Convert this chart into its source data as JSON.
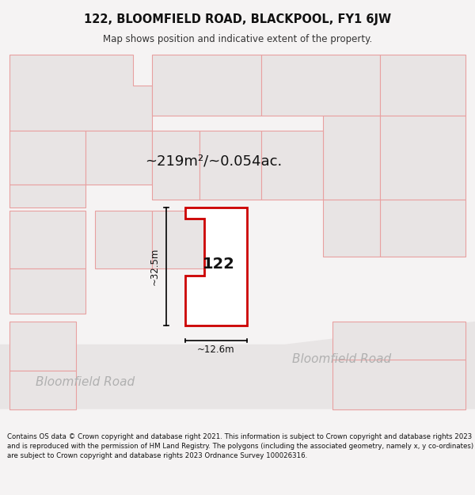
{
  "title_line1": "122, BLOOMFIELD ROAD, BLACKPOOL, FY1 6JW",
  "title_line2": "Map shows position and indicative extent of the property.",
  "area_label": "~219m²/~0.054ac.",
  "property_label": "122",
  "dim_width_label": "~12.6m",
  "dim_height_label": "~32.5m",
  "road_label_bottom_left": "Bloomfield Road",
  "road_label_bottom_right": "Bloomfield Road",
  "footer_text": "Contains OS data © Crown copyright and database right 2021. This information is subject to Crown copyright and database rights 2023 and is reproduced with the permission of HM Land Registry. The polygons (including the associated geometry, namely x, y co-ordinates) are subject to Crown copyright and database rights 2023 Ordnance Survey 100026316.",
  "bg_color": "#f2f0f0",
  "building_fill": "#e8e4e4",
  "building_edge": "#e8a0a0",
  "highlight_fill": "#ffffff",
  "highlight_edge": "#cc0000",
  "footer_bg": "#ffffff",
  "map_area": [
    0.0,
    0.07,
    1.0,
    0.93
  ]
}
